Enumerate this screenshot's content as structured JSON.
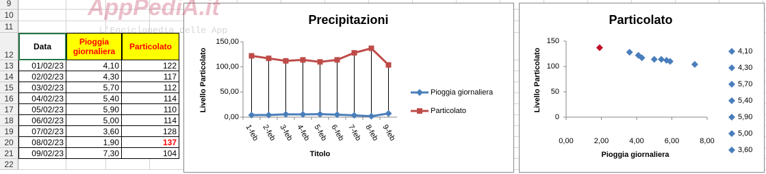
{
  "sheet": {
    "row_numbers": [
      9,
      10,
      11,
      12,
      13,
      14,
      15,
      16,
      17,
      18,
      19,
      20,
      21,
      22
    ],
    "header": [
      "Data",
      "Pioggia giornaliera",
      "Particolato"
    ],
    "rows": [
      [
        "01/02/23",
        "4,10",
        "122"
      ],
      [
        "02/02/23",
        "4,30",
        "117"
      ],
      [
        "03/02/23",
        "5,70",
        "112"
      ],
      [
        "04/02/23",
        "5,40",
        "114"
      ],
      [
        "05/02/23",
        "5,90",
        "110"
      ],
      [
        "06/02/23",
        "5,00",
        "114"
      ],
      [
        "07/02/23",
        "3,60",
        "128"
      ],
      [
        "08/02/23",
        "1,90",
        "137"
      ],
      [
        "09/02/23",
        "7,30",
        "104"
      ]
    ],
    "watermark": {
      "title": "AppPediA.it",
      "subtitle": "L'Enciclopedia delle App"
    }
  },
  "chart_data": [
    {
      "type": "line",
      "title": "Precipitazioni",
      "x_label": "Titolo",
      "y_label": "Livello Particolato",
      "categories": [
        "1-feb",
        "2-feb",
        "3-feb",
        "4-feb",
        "5-feb",
        "6-feb",
        "7-feb",
        "8-feb",
        "9-feb"
      ],
      "series": [
        {
          "name": "Pioggia giornaliera",
          "color": "#4a7ebb",
          "marker": "diamond",
          "values": [
            4.1,
            4.3,
            5.7,
            5.4,
            5.9,
            5.0,
            3.6,
            1.9,
            7.3
          ]
        },
        {
          "name": "Particolato",
          "color": "#be4b48",
          "marker": "square",
          "values": [
            122,
            117,
            112,
            114,
            110,
            114,
            128,
            137,
            104
          ]
        }
      ],
      "high_low_lines": true,
      "ylim": [
        0,
        150
      ],
      "yticks": [
        {
          "value": 0,
          "label": "0,00"
        },
        {
          "value": 50,
          "label": "50,00"
        },
        {
          "value": 100,
          "label": "100,00"
        },
        {
          "value": 150,
          "label": "150,00"
        }
      ],
      "grid": false,
      "legend": "right"
    },
    {
      "type": "scatter",
      "title": "Particolato",
      "x_label": "Pioggia giornaliera",
      "y_label": "Livello Particolato",
      "series": [
        {
          "name": "4,10",
          "color": "#4a7ebb",
          "x": [
            4.1
          ],
          "values": [
            122
          ]
        },
        {
          "name": "4,30",
          "color": "#4a7ebb",
          "x": [
            4.3
          ],
          "values": [
            117
          ]
        },
        {
          "name": "5,70",
          "color": "#4a7ebb",
          "x": [
            5.7
          ],
          "values": [
            112
          ]
        },
        {
          "name": "5,40",
          "color": "#4a7ebb",
          "x": [
            5.4
          ],
          "values": [
            114
          ]
        },
        {
          "name": "5,90",
          "color": "#4a7ebb",
          "x": [
            5.9
          ],
          "values": [
            110
          ]
        },
        {
          "name": "5,00",
          "color": "#4a7ebb",
          "x": [
            5.0
          ],
          "values": [
            114
          ]
        },
        {
          "name": "3,60",
          "color": "#4a7ebb",
          "x": [
            3.6
          ],
          "values": [
            128
          ]
        },
        {
          "name": null,
          "color": "#c0102a",
          "x": [
            1.9
          ],
          "values": [
            137
          ]
        },
        {
          "name": null,
          "color": "#4a7ebb",
          "x": [
            7.3
          ],
          "values": [
            104
          ]
        }
      ],
      "xlim": [
        0,
        8
      ],
      "xticks": [
        {
          "value": 0,
          "label": "0,00"
        },
        {
          "value": 2,
          "label": "2,00"
        },
        {
          "value": 4,
          "label": "4,00"
        },
        {
          "value": 6,
          "label": "6,00"
        },
        {
          "value": 8,
          "label": "8,00"
        }
      ],
      "ylim": [
        0,
        150
      ],
      "yticks": [
        0,
        50,
        100,
        150
      ],
      "grid": false,
      "legend": "right"
    }
  ]
}
